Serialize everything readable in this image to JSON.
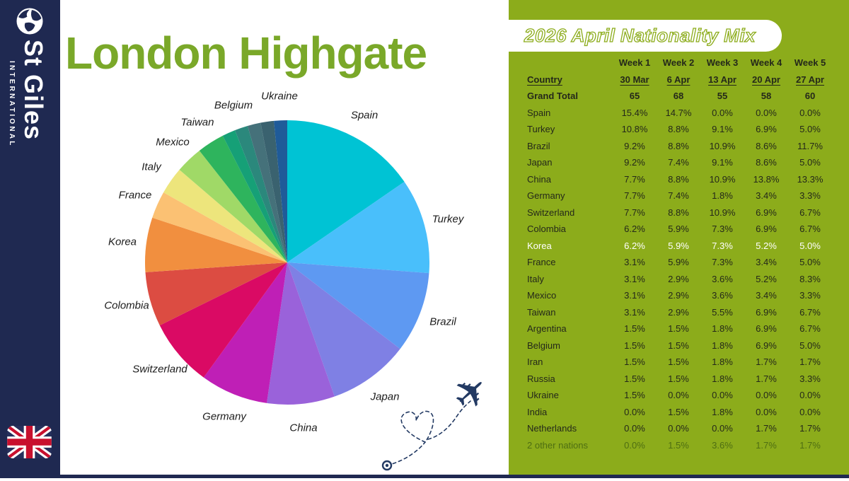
{
  "header": {
    "title": "London Highgate"
  },
  "sidebar": {
    "brand": "St Giles",
    "subbrand": "INTERNATIONAL"
  },
  "panel": {
    "title": "2026 April Nationality Mix"
  },
  "colors": {
    "sidebar_navy": "#1F2951",
    "title_green": "#7AA829",
    "panel_green": "#8CAC1B",
    "doodle_navy": "#233A63",
    "table_text": "#24281A",
    "highlight_row_text": "#FFFFFF",
    "muted_row_text": "#4E6E12",
    "flag_red": "#C8102E"
  },
  "chart_data": [
    {
      "type": "pie",
      "title": "Week 1 (30 Mar) nationality mix",
      "start_angle_deg": -90,
      "direction": "clockwise",
      "slices": [
        {
          "label": "Spain",
          "value": 15.4,
          "color": "#00C3D4",
          "show_label": true
        },
        {
          "label": "Turkey",
          "value": 10.8,
          "color": "#49BFFB",
          "show_label": true
        },
        {
          "label": "Brazil",
          "value": 9.2,
          "color": "#5E99F2",
          "show_label": true
        },
        {
          "label": "Japan",
          "value": 9.2,
          "color": "#7F80E4",
          "show_label": true
        },
        {
          "label": "China",
          "value": 7.7,
          "color": "#9A62DA",
          "show_label": true
        },
        {
          "label": "Germany",
          "value": 7.7,
          "color": "#BF1FB6",
          "show_label": true
        },
        {
          "label": "Switzerland",
          "value": 7.7,
          "color": "#DA0A64",
          "show_label": true
        },
        {
          "label": "Colombia",
          "value": 6.2,
          "color": "#DC4C42",
          "show_label": true
        },
        {
          "label": "Korea",
          "value": 6.2,
          "color": "#F18F3F",
          "show_label": true
        },
        {
          "label": "France",
          "value": 3.1,
          "color": "#FBC173",
          "show_label": true
        },
        {
          "label": "Italy",
          "value": 3.1,
          "color": "#EDE57C",
          "show_label": true
        },
        {
          "label": "Mexico",
          "value": 3.1,
          "color": "#A0D967",
          "show_label": true
        },
        {
          "label": "Taiwan",
          "value": 3.1,
          "color": "#2EB45D",
          "show_label": true
        },
        {
          "label": "Argentina",
          "value": 1.5,
          "color": "#16A077",
          "show_label": false
        },
        {
          "label": "Belgium",
          "value": 1.5,
          "color": "#2B887C",
          "show_label": true
        },
        {
          "label": "Iran",
          "value": 1.5,
          "color": "#45717A",
          "show_label": false
        },
        {
          "label": "Russia",
          "value": 1.5,
          "color": "#3A626F",
          "show_label": false
        },
        {
          "label": "Ukraine",
          "value": 1.5,
          "color": "#1F5B99",
          "show_label": true
        }
      ]
    },
    {
      "type": "table",
      "country_header": "Country",
      "week_headers": [
        "Week 1",
        "Week 2",
        "Week 3",
        "Week 4",
        "Week 5"
      ],
      "date_headers": [
        "30 Mar",
        "6 Apr",
        "13 Apr",
        "20 Apr",
        "27 Apr"
      ],
      "grand_total_label": "Grand Total",
      "grand_total": [
        "65",
        "68",
        "55",
        "58",
        "60"
      ],
      "rows": [
        {
          "country": "Spain",
          "values": [
            "15.4%",
            "14.7%",
            "0.0%",
            "0.0%",
            "0.0%"
          ],
          "emphasis": "normal"
        },
        {
          "country": "Turkey",
          "values": [
            "10.8%",
            "8.8%",
            "9.1%",
            "6.9%",
            "5.0%"
          ],
          "emphasis": "normal"
        },
        {
          "country": "Brazil",
          "values": [
            "9.2%",
            "8.8%",
            "10.9%",
            "8.6%",
            "11.7%"
          ],
          "emphasis": "normal"
        },
        {
          "country": "Japan",
          "values": [
            "9.2%",
            "7.4%",
            "9.1%",
            "8.6%",
            "5.0%"
          ],
          "emphasis": "normal"
        },
        {
          "country": "China",
          "values": [
            "7.7%",
            "8.8%",
            "10.9%",
            "13.8%",
            "13.3%"
          ],
          "emphasis": "normal"
        },
        {
          "country": "Germany",
          "values": [
            "7.7%",
            "7.4%",
            "1.8%",
            "3.4%",
            "3.3%"
          ],
          "emphasis": "normal"
        },
        {
          "country": "Switzerland",
          "values": [
            "7.7%",
            "8.8%",
            "10.9%",
            "6.9%",
            "6.7%"
          ],
          "emphasis": "normal"
        },
        {
          "country": "Colombia",
          "values": [
            "6.2%",
            "5.9%",
            "7.3%",
            "6.9%",
            "6.7%"
          ],
          "emphasis": "normal"
        },
        {
          "country": "Korea",
          "values": [
            "6.2%",
            "5.9%",
            "7.3%",
            "5.2%",
            "5.0%"
          ],
          "emphasis": "highlight"
        },
        {
          "country": "France",
          "values": [
            "3.1%",
            "5.9%",
            "7.3%",
            "3.4%",
            "5.0%"
          ],
          "emphasis": "normal"
        },
        {
          "country": "Italy",
          "values": [
            "3.1%",
            "2.9%",
            "3.6%",
            "5.2%",
            "8.3%"
          ],
          "emphasis": "normal"
        },
        {
          "country": "Mexico",
          "values": [
            "3.1%",
            "2.9%",
            "3.6%",
            "3.4%",
            "3.3%"
          ],
          "emphasis": "normal"
        },
        {
          "country": "Taiwan",
          "values": [
            "3.1%",
            "2.9%",
            "5.5%",
            "6.9%",
            "6.7%"
          ],
          "emphasis": "normal"
        },
        {
          "country": "Argentina",
          "values": [
            "1.5%",
            "1.5%",
            "1.8%",
            "6.9%",
            "6.7%"
          ],
          "emphasis": "normal"
        },
        {
          "country": "Belgium",
          "values": [
            "1.5%",
            "1.5%",
            "1.8%",
            "6.9%",
            "5.0%"
          ],
          "emphasis": "normal"
        },
        {
          "country": "Iran",
          "values": [
            "1.5%",
            "1.5%",
            "1.8%",
            "1.7%",
            "1.7%"
          ],
          "emphasis": "normal"
        },
        {
          "country": "Russia",
          "values": [
            "1.5%",
            "1.5%",
            "1.8%",
            "1.7%",
            "3.3%"
          ],
          "emphasis": "normal"
        },
        {
          "country": "Ukraine",
          "values": [
            "1.5%",
            "0.0%",
            "0.0%",
            "0.0%",
            "0.0%"
          ],
          "emphasis": "normal"
        },
        {
          "country": "India",
          "values": [
            "0.0%",
            "1.5%",
            "1.8%",
            "0.0%",
            "0.0%"
          ],
          "emphasis": "normal"
        },
        {
          "country": "Netherlands",
          "values": [
            "0.0%",
            "0.0%",
            "0.0%",
            "1.7%",
            "1.7%"
          ],
          "emphasis": "normal"
        },
        {
          "country": "2 other nations",
          "values": [
            "0.0%",
            "1.5%",
            "3.6%",
            "1.7%",
            "1.7%"
          ],
          "emphasis": "muted"
        }
      ]
    }
  ]
}
